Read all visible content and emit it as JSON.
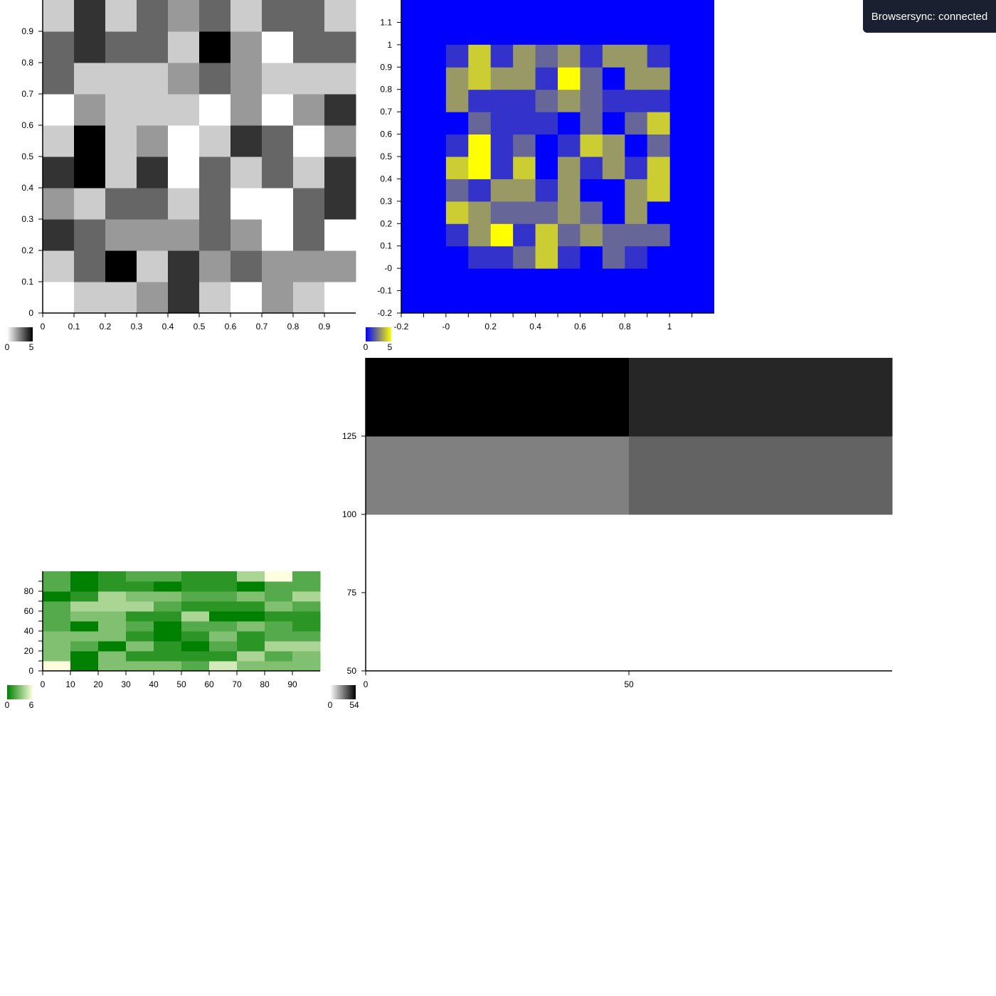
{
  "notification": {
    "text": "Browsersync: connected"
  },
  "chart_data": [
    {
      "type": "heatmap",
      "title": "",
      "colormap": {
        "from": "#ffffff",
        "to": "#000000"
      },
      "legend": {
        "min_label": "0",
        "max_label": "5"
      },
      "x_ticks": [
        0,
        0.1,
        0.2,
        0.3,
        0.4,
        0.5,
        0.6,
        0.7,
        0.8,
        0.9
      ],
      "y_ticks": [
        0,
        0.1,
        0.2,
        0.3,
        0.4,
        0.5,
        0.6,
        0.7,
        0.8,
        0.9
      ],
      "xlim": [
        0,
        1
      ],
      "ylim": [
        0,
        1
      ],
      "vmin": 0,
      "vmax": 5,
      "x_edges": [
        0,
        0.1,
        0.2,
        0.3,
        0.4,
        0.5,
        0.6,
        0.7,
        0.8,
        0.9,
        1.0
      ],
      "y_edges": [
        0,
        0.1,
        0.2,
        0.3,
        0.4,
        0.5,
        0.6,
        0.7,
        0.8,
        0.9,
        1.0
      ],
      "values": [
        [
          0,
          1,
          1,
          2,
          4,
          1,
          0,
          2,
          1,
          0
        ],
        [
          1,
          3,
          5,
          1,
          4,
          2,
          3,
          2,
          2,
          2
        ],
        [
          4,
          3,
          2,
          2,
          2,
          3,
          2,
          0,
          3,
          0
        ],
        [
          2,
          1,
          3,
          3,
          1,
          3,
          0,
          0,
          3,
          4
        ],
        [
          4,
          5,
          1,
          4,
          0,
          3,
          1,
          3,
          1,
          4
        ],
        [
          1,
          5,
          1,
          2,
          0,
          1,
          4,
          3,
          0,
          2
        ],
        [
          0,
          2,
          1,
          1,
          1,
          0,
          2,
          0,
          2,
          4
        ],
        [
          3,
          1,
          1,
          1,
          2,
          3,
          2,
          1,
          1,
          1
        ],
        [
          3,
          4,
          3,
          3,
          1,
          5,
          2,
          0,
          3,
          3
        ],
        [
          1,
          4,
          1,
          3,
          2,
          3,
          1,
          3,
          3,
          1
        ]
      ]
    },
    {
      "type": "heatmap",
      "title": "",
      "colormap": {
        "from": "#0000ff",
        "to": "#ffff00"
      },
      "legend": {
        "min_label": "0",
        "max_label": "5"
      },
      "x_ticks": [
        -0.2,
        0,
        0.2,
        0.4,
        0.6,
        0.8,
        1
      ],
      "x_tick_labels": [
        "-0.2",
        "-0",
        "0.2",
        "0.4",
        "0.6",
        "0.8",
        "1"
      ],
      "x_minor_ticks": [
        -0.1,
        0.1,
        0.3,
        0.5,
        0.7,
        0.9,
        1.1
      ],
      "y_ticks": [
        -0.2,
        -0.1,
        0,
        0.1,
        0.2,
        0.3,
        0.4,
        0.5,
        0.6,
        0.7,
        0.8,
        0.9,
        1,
        1.1
      ],
      "y_tick_labels": [
        "-0.2",
        "-0.1",
        "-0",
        "0.1",
        "0.2",
        "0.3",
        "0.4",
        "0.5",
        "0.6",
        "0.7",
        "0.8",
        "0.9",
        "1",
        "1.1"
      ],
      "xlim": [
        -0.2,
        1.2
      ],
      "ylim": [
        -0.2,
        1.2
      ],
      "vmin": 0,
      "vmax": 5,
      "background_value": 0,
      "x_edges": [
        0,
        0.1,
        0.2,
        0.3,
        0.4,
        0.5,
        0.6,
        0.7,
        0.8,
        0.9,
        1.0
      ],
      "y_edges": [
        0,
        0.1,
        0.2,
        0.3,
        0.4,
        0.5,
        0.6,
        0.7,
        0.8,
        0.9,
        1.0
      ],
      "values": [
        [
          0,
          1,
          1,
          2,
          4,
          1,
          0,
          2,
          1,
          0
        ],
        [
          1,
          3,
          5,
          1,
          4,
          2,
          3,
          2,
          2,
          2
        ],
        [
          4,
          3,
          2,
          2,
          2,
          3,
          2,
          0,
          3,
          0
        ],
        [
          2,
          1,
          3,
          3,
          1,
          3,
          0,
          0,
          3,
          4
        ],
        [
          4,
          5,
          1,
          4,
          0,
          3,
          1,
          3,
          1,
          4
        ],
        [
          1,
          5,
          1,
          2,
          0,
          1,
          4,
          3,
          0,
          2
        ],
        [
          0,
          2,
          1,
          1,
          1,
          0,
          2,
          0,
          2,
          4
        ],
        [
          3,
          1,
          1,
          1,
          2,
          3,
          2,
          1,
          1,
          1
        ],
        [
          3,
          4,
          3,
          3,
          1,
          5,
          2,
          0,
          3,
          3
        ],
        [
          1,
          4,
          1,
          3,
          2,
          3,
          1,
          3,
          3,
          1
        ]
      ]
    },
    {
      "type": "heatmap",
      "title": "",
      "colormap": {
        "from": "#008000",
        "to": "#ffffe0"
      },
      "legend": {
        "min_label": "0",
        "max_label": "6"
      },
      "x_ticks": [
        0,
        10,
        20,
        30,
        40,
        50,
        60,
        70,
        80,
        90
      ],
      "y_ticks": [
        0,
        20,
        40,
        60,
        80
      ],
      "y_minor_ticks": [
        10,
        30,
        50,
        70,
        90
      ],
      "xlim": [
        0,
        100
      ],
      "ylim": [
        0,
        100
      ],
      "vmin": 0,
      "vmax": 6,
      "x_edges": [
        0,
        10,
        20,
        30,
        40,
        50,
        60,
        70,
        80,
        90,
        100
      ],
      "y_edges": [
        0,
        10,
        20,
        30,
        40,
        50,
        60,
        70,
        80,
        90,
        100
      ],
      "values": [
        [
          6,
          0,
          3,
          3,
          3,
          2,
          5,
          3,
          3,
          3
        ],
        [
          3,
          0,
          3,
          1,
          1,
          1,
          1,
          4,
          2,
          3
        ],
        [
          3,
          2,
          0,
          3,
          1,
          0,
          2,
          1,
          4,
          4
        ],
        [
          3,
          3,
          3,
          1,
          0,
          1,
          3,
          1,
          2,
          2
        ],
        [
          2,
          0,
          3,
          2,
          0,
          2,
          2,
          3,
          2,
          1
        ],
        [
          2,
          3,
          3,
          1,
          1,
          4,
          0,
          0,
          1,
          1
        ],
        [
          2,
          4,
          4,
          4,
          2,
          1,
          1,
          1,
          3,
          2
        ],
        [
          0,
          1,
          4,
          3,
          3,
          2,
          2,
          3,
          2,
          4
        ],
        [
          2,
          0,
          1,
          1,
          0,
          1,
          1,
          0,
          2,
          2
        ],
        [
          2,
          0,
          1,
          2,
          2,
          1,
          1,
          4,
          6,
          2
        ]
      ]
    },
    {
      "type": "heatmap",
      "title": "",
      "colormap": {
        "from": "#ffffff",
        "to": "#000000"
      },
      "legend": {
        "min_label": "0",
        "max_label": "54"
      },
      "x_ticks": [
        0,
        50
      ],
      "y_ticks": [
        50,
        75,
        100,
        125
      ],
      "xlim": [
        0,
        100
      ],
      "ylim": [
        50,
        150
      ],
      "vmin": 0,
      "vmax": 54,
      "x_edges": [
        0,
        50,
        100
      ],
      "y_edges": [
        100,
        125,
        150
      ],
      "values": [
        [
          27,
          33
        ],
        [
          54,
          46
        ]
      ]
    }
  ]
}
